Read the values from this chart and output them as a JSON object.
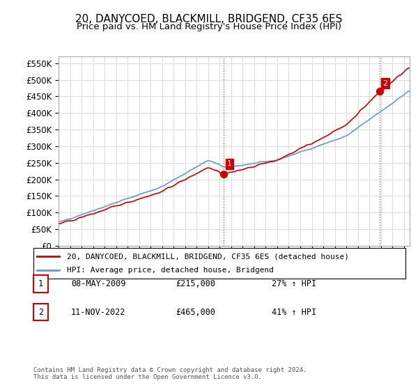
{
  "title": "20, DANYCOED, BLACKMILL, BRIDGEND, CF35 6ES",
  "subtitle": "Price paid vs. HM Land Registry's House Price Index (HPI)",
  "ylabel_ticks": [
    "£0",
    "£50K",
    "£100K",
    "£150K",
    "£200K",
    "£250K",
    "£300K",
    "£350K",
    "£400K",
    "£450K",
    "£500K",
    "£550K"
  ],
  "ytick_values": [
    0,
    50000,
    100000,
    150000,
    200000,
    250000,
    300000,
    350000,
    400000,
    450000,
    500000,
    550000
  ],
  "ylim": [
    0,
    570000
  ],
  "xlim_start": 1995.0,
  "xlim_end": 2025.5,
  "red_line_color": "#cc0000",
  "blue_line_color": "#6699cc",
  "marker1_date": 2009.35,
  "marker1_value": 215000,
  "marker1_label": "1",
  "marker2_date": 2022.87,
  "marker2_value": 465000,
  "marker2_label": "2",
  "vline1_x": 2009.35,
  "vline2_x": 2022.87,
  "legend_line1": "20, DANYCOED, BLACKMILL, BRIDGEND, CF35 6ES (detached house)",
  "legend_line2": "HPI: Average price, detached house, Bridgend",
  "table_row1_num": "1",
  "table_row1_date": "08-MAY-2009",
  "table_row1_price": "£215,000",
  "table_row1_hpi": "27% ↑ HPI",
  "table_row2_num": "2",
  "table_row2_date": "11-NOV-2022",
  "table_row2_price": "£465,000",
  "table_row2_hpi": "41% ↑ HPI",
  "footer": "Contains HM Land Registry data © Crown copyright and database right 2024.\nThis data is licensed under the Open Government Licence v3.0.",
  "title_fontsize": 11,
  "subtitle_fontsize": 9.5,
  "background_color": "#ffffff",
  "grid_color": "#dddddd"
}
